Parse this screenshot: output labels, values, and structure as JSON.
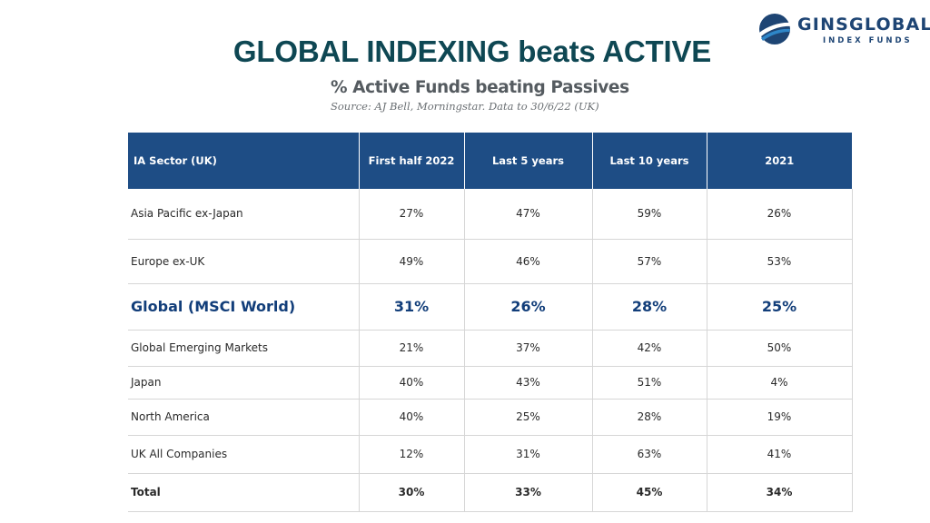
{
  "header": {
    "title": "GLOBAL INDEXING beats ACTIVE",
    "subtitle": "% Active Funds beating Passives",
    "source": "Source: AJ Bell, Morningstar. Data to 30/6/22 (UK)"
  },
  "logo": {
    "name": "GINSGLOBAL",
    "tagline": "INDEX FUNDS",
    "colors": {
      "dark": "#1e4574",
      "light": "#2e86c8"
    }
  },
  "table": {
    "columns": [
      "IA Sector (UK)",
      "First half 2022",
      "Last 5 years",
      "Last 10 years",
      "2021"
    ],
    "rows": [
      {
        "sector": "Asia Pacific ex-Japan",
        "h1_2022": "27%",
        "last5": "47%",
        "last10": "59%",
        "y2021": "26%"
      },
      {
        "sector": "Europe ex-UK",
        "h1_2022": "49%",
        "last5": "46%",
        "last10": "57%",
        "y2021": "53%"
      },
      {
        "sector": "Global (MSCI World)",
        "h1_2022": "31%",
        "last5": "26%",
        "last10": "28%",
        "y2021": "25%"
      },
      {
        "sector": "Global Emerging Markets",
        "h1_2022": "21%",
        "last5": "37%",
        "last10": "42%",
        "y2021": "50%"
      },
      {
        "sector": "Japan",
        "h1_2022": "40%",
        "last5": "43%",
        "last10": "51%",
        "y2021": "4%"
      },
      {
        "sector": "North America",
        "h1_2022": "40%",
        "last5": "25%",
        "last10": "28%",
        "y2021": "19%"
      },
      {
        "sector": "UK All Companies",
        "h1_2022": "12%",
        "last5": "31%",
        "last10": "63%",
        "y2021": "41%"
      },
      {
        "sector": "Total",
        "h1_2022": "30%",
        "last5": "33%",
        "last10": "45%",
        "y2021": "34%"
      }
    ],
    "header_color": "#1e4d85",
    "highlight_color": "#123e7a"
  }
}
